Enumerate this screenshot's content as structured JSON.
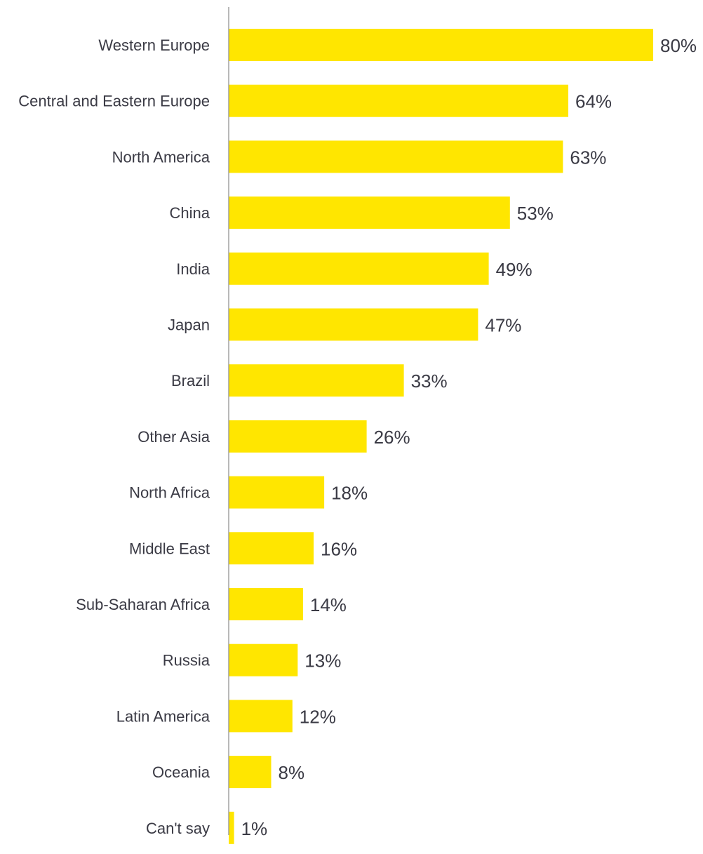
{
  "chart_data": {
    "type": "bar",
    "orientation": "horizontal",
    "categories": [
      "Western Europe",
      "Central and Eastern Europe",
      "North America",
      "China",
      "India",
      "Japan",
      "Brazil",
      "Other Asia",
      "North Africa",
      "Middle East",
      "Sub-Saharan Africa",
      "Russia",
      "Latin America",
      "Oceania",
      "Can't say"
    ],
    "values": [
      80,
      64,
      63,
      53,
      49,
      47,
      33,
      26,
      18,
      16,
      14,
      13,
      12,
      8,
      1
    ],
    "value_labels": [
      "80%",
      "64%",
      "63%",
      "53%",
      "49%",
      "47%",
      "33%",
      "26%",
      "18%",
      "16%",
      "14%",
      "13%",
      "12%",
      "8%",
      "1%"
    ],
    "unit": "%",
    "xlim": [
      0,
      80
    ],
    "grid": false,
    "legend": "none",
    "title": "",
    "xlabel": "",
    "ylabel": "",
    "colors": {
      "bar": "#FFE600",
      "axis": "#8a8a8a",
      "text": "#3a3a44"
    }
  }
}
